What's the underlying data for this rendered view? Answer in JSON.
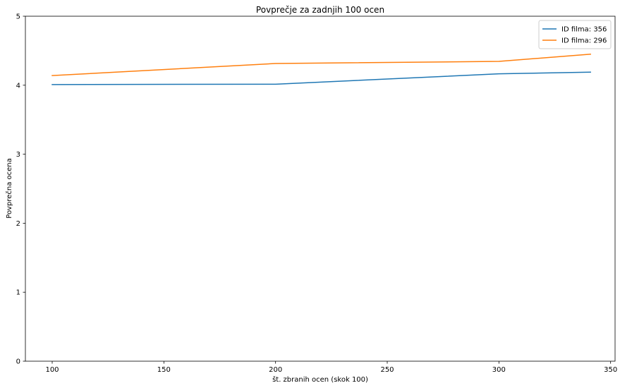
{
  "chart_data": {
    "type": "line",
    "title": "Povprečje za zadnjih 100 ocen",
    "xlabel": "št. zbranih ocen (skok 100)",
    "ylabel": "Povprečna ocena",
    "xlim": [
      88,
      352
    ],
    "ylim": [
      0,
      5
    ],
    "xticks": [
      100,
      150,
      200,
      250,
      300,
      350
    ],
    "yticks": [
      0,
      1,
      2,
      3,
      4,
      5
    ],
    "grid": false,
    "legend_position": "top-right",
    "series": [
      {
        "name": "ID filma: 356",
        "color": "#1f77b4",
        "x": [
          100,
          200,
          300,
          341
        ],
        "y": [
          4.01,
          4.015,
          4.165,
          4.19
        ]
      },
      {
        "name": "ID filma: 296",
        "color": "#ff7f0e",
        "x": [
          100,
          200,
          300,
          341
        ],
        "y": [
          4.14,
          4.315,
          4.345,
          4.45
        ]
      }
    ]
  }
}
